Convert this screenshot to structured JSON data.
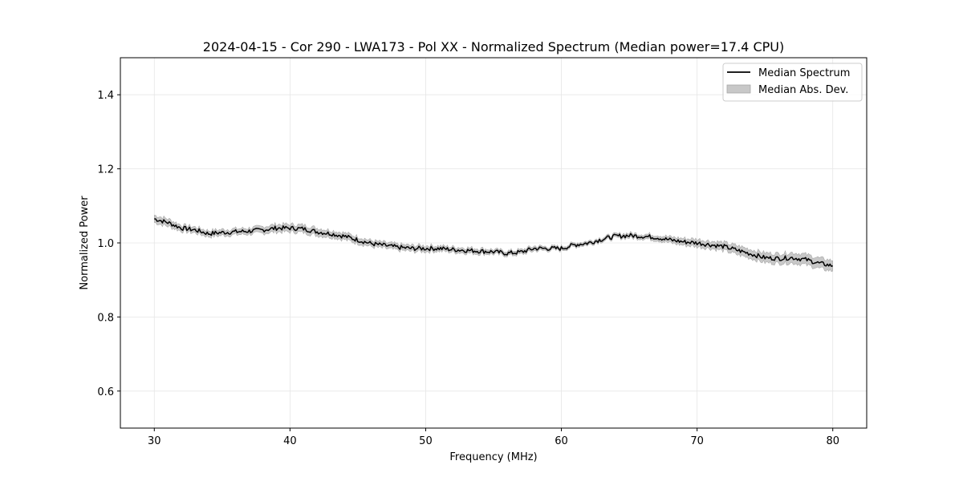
{
  "chart_data": {
    "type": "line",
    "title": "2024-04-15 - Cor 290 - LWA173 - Pol XX - Normalized Spectrum (Median power=17.4 CPU)",
    "xlabel": "Frequency (MHz)",
    "ylabel": "Normalized Power",
    "xlim": [
      27.5,
      82.5
    ],
    "ylim": [
      0.5,
      1.5
    ],
    "xticks": [
      30,
      40,
      50,
      60,
      70,
      80
    ],
    "yticks": [
      0.6,
      0.8,
      1.0,
      1.2,
      1.4
    ],
    "xtick_labels": [
      "30",
      "40",
      "50",
      "60",
      "70",
      "80"
    ],
    "ytick_labels": [
      "0.6",
      "0.8",
      "1.0",
      "1.2",
      "1.4"
    ],
    "grid": true,
    "legend_position": "top-right",
    "series": [
      {
        "name": "Median Spectrum",
        "color": "#000000",
        "x": [
          30,
          31,
          32,
          33,
          34,
          35,
          36,
          37,
          38,
          39,
          40,
          41,
          42,
          43,
          44,
          45,
          46,
          47,
          48,
          49,
          50,
          51,
          52,
          53,
          54,
          55,
          56,
          57,
          58,
          59,
          60,
          61,
          62,
          63,
          64,
          65,
          66,
          67,
          68,
          69,
          70,
          71,
          72,
          73,
          74,
          75,
          76,
          77,
          78,
          79,
          80
        ],
        "values": [
          1.065,
          1.055,
          1.04,
          1.035,
          1.025,
          1.028,
          1.03,
          1.032,
          1.035,
          1.04,
          1.04,
          1.038,
          1.03,
          1.025,
          1.018,
          1.008,
          0.998,
          0.993,
          0.988,
          0.985,
          0.985,
          0.985,
          0.982,
          0.98,
          0.978,
          0.976,
          0.972,
          0.975,
          0.985,
          0.985,
          0.985,
          0.995,
          1.0,
          1.01,
          1.018,
          1.02,
          1.018,
          1.015,
          1.008,
          1.003,
          1.0,
          0.995,
          0.99,
          0.98,
          0.97,
          0.96,
          0.958,
          0.96,
          0.955,
          0.945,
          0.938
        ]
      },
      {
        "name": "Median Abs. Dev.",
        "color": "#c8c8c8",
        "type": "band",
        "half_width": [
          0.01,
          0.01,
          0.008,
          0.008,
          0.008,
          0.008,
          0.008,
          0.008,
          0.009,
          0.01,
          0.01,
          0.01,
          0.01,
          0.009,
          0.009,
          0.009,
          0.008,
          0.008,
          0.008,
          0.008,
          0.008,
          0.007,
          0.007,
          0.007,
          0.007,
          0.006,
          0.006,
          0.006,
          0.006,
          0.005,
          0.005,
          0.005,
          0.005,
          0.005,
          0.005,
          0.006,
          0.006,
          0.007,
          0.008,
          0.009,
          0.01,
          0.01,
          0.011,
          0.012,
          0.012,
          0.013,
          0.013,
          0.014,
          0.014,
          0.014,
          0.014
        ]
      }
    ]
  }
}
